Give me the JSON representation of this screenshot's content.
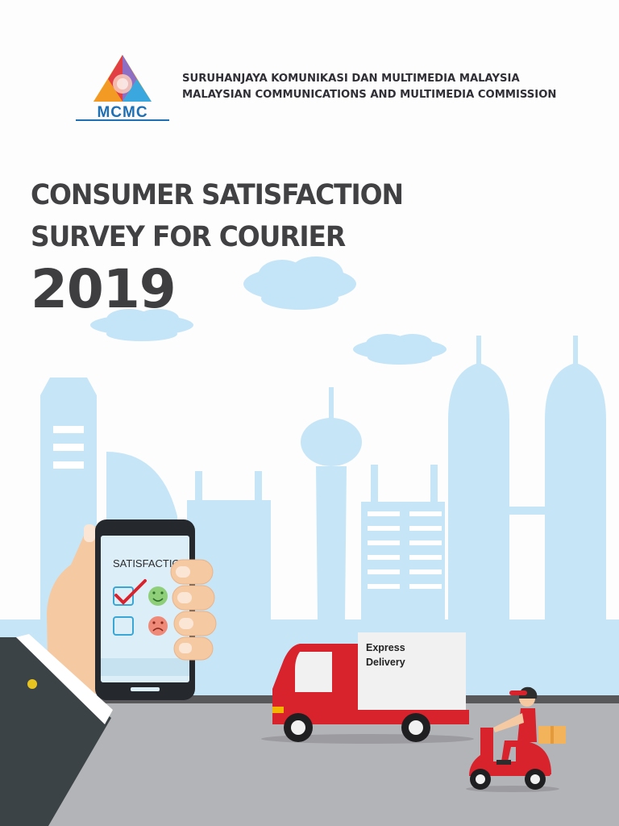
{
  "header": {
    "logo_text": "MCMC",
    "org_name_malay": "SURUHANJAYA KOMUNIKASI DAN MULTIMEDIA MALAYSIA",
    "org_name_english": "MALAYSIAN COMMUNICATIONS AND MULTIMEDIA COMMISSION"
  },
  "cover": {
    "title_line1": "CONSUMER SATISFACTION",
    "title_line2": "SURVEY FOR COURIER",
    "year": "2019"
  },
  "illustration": {
    "phone_screen_title": "SATISFACTION",
    "van_label_line1": "Express",
    "van_label_line2": "Delivery"
  },
  "colors": {
    "sky_buildings": "#c6e6f8",
    "road": "#b3b4b8",
    "van_red": "#d8232d",
    "title_text": "#414143"
  }
}
